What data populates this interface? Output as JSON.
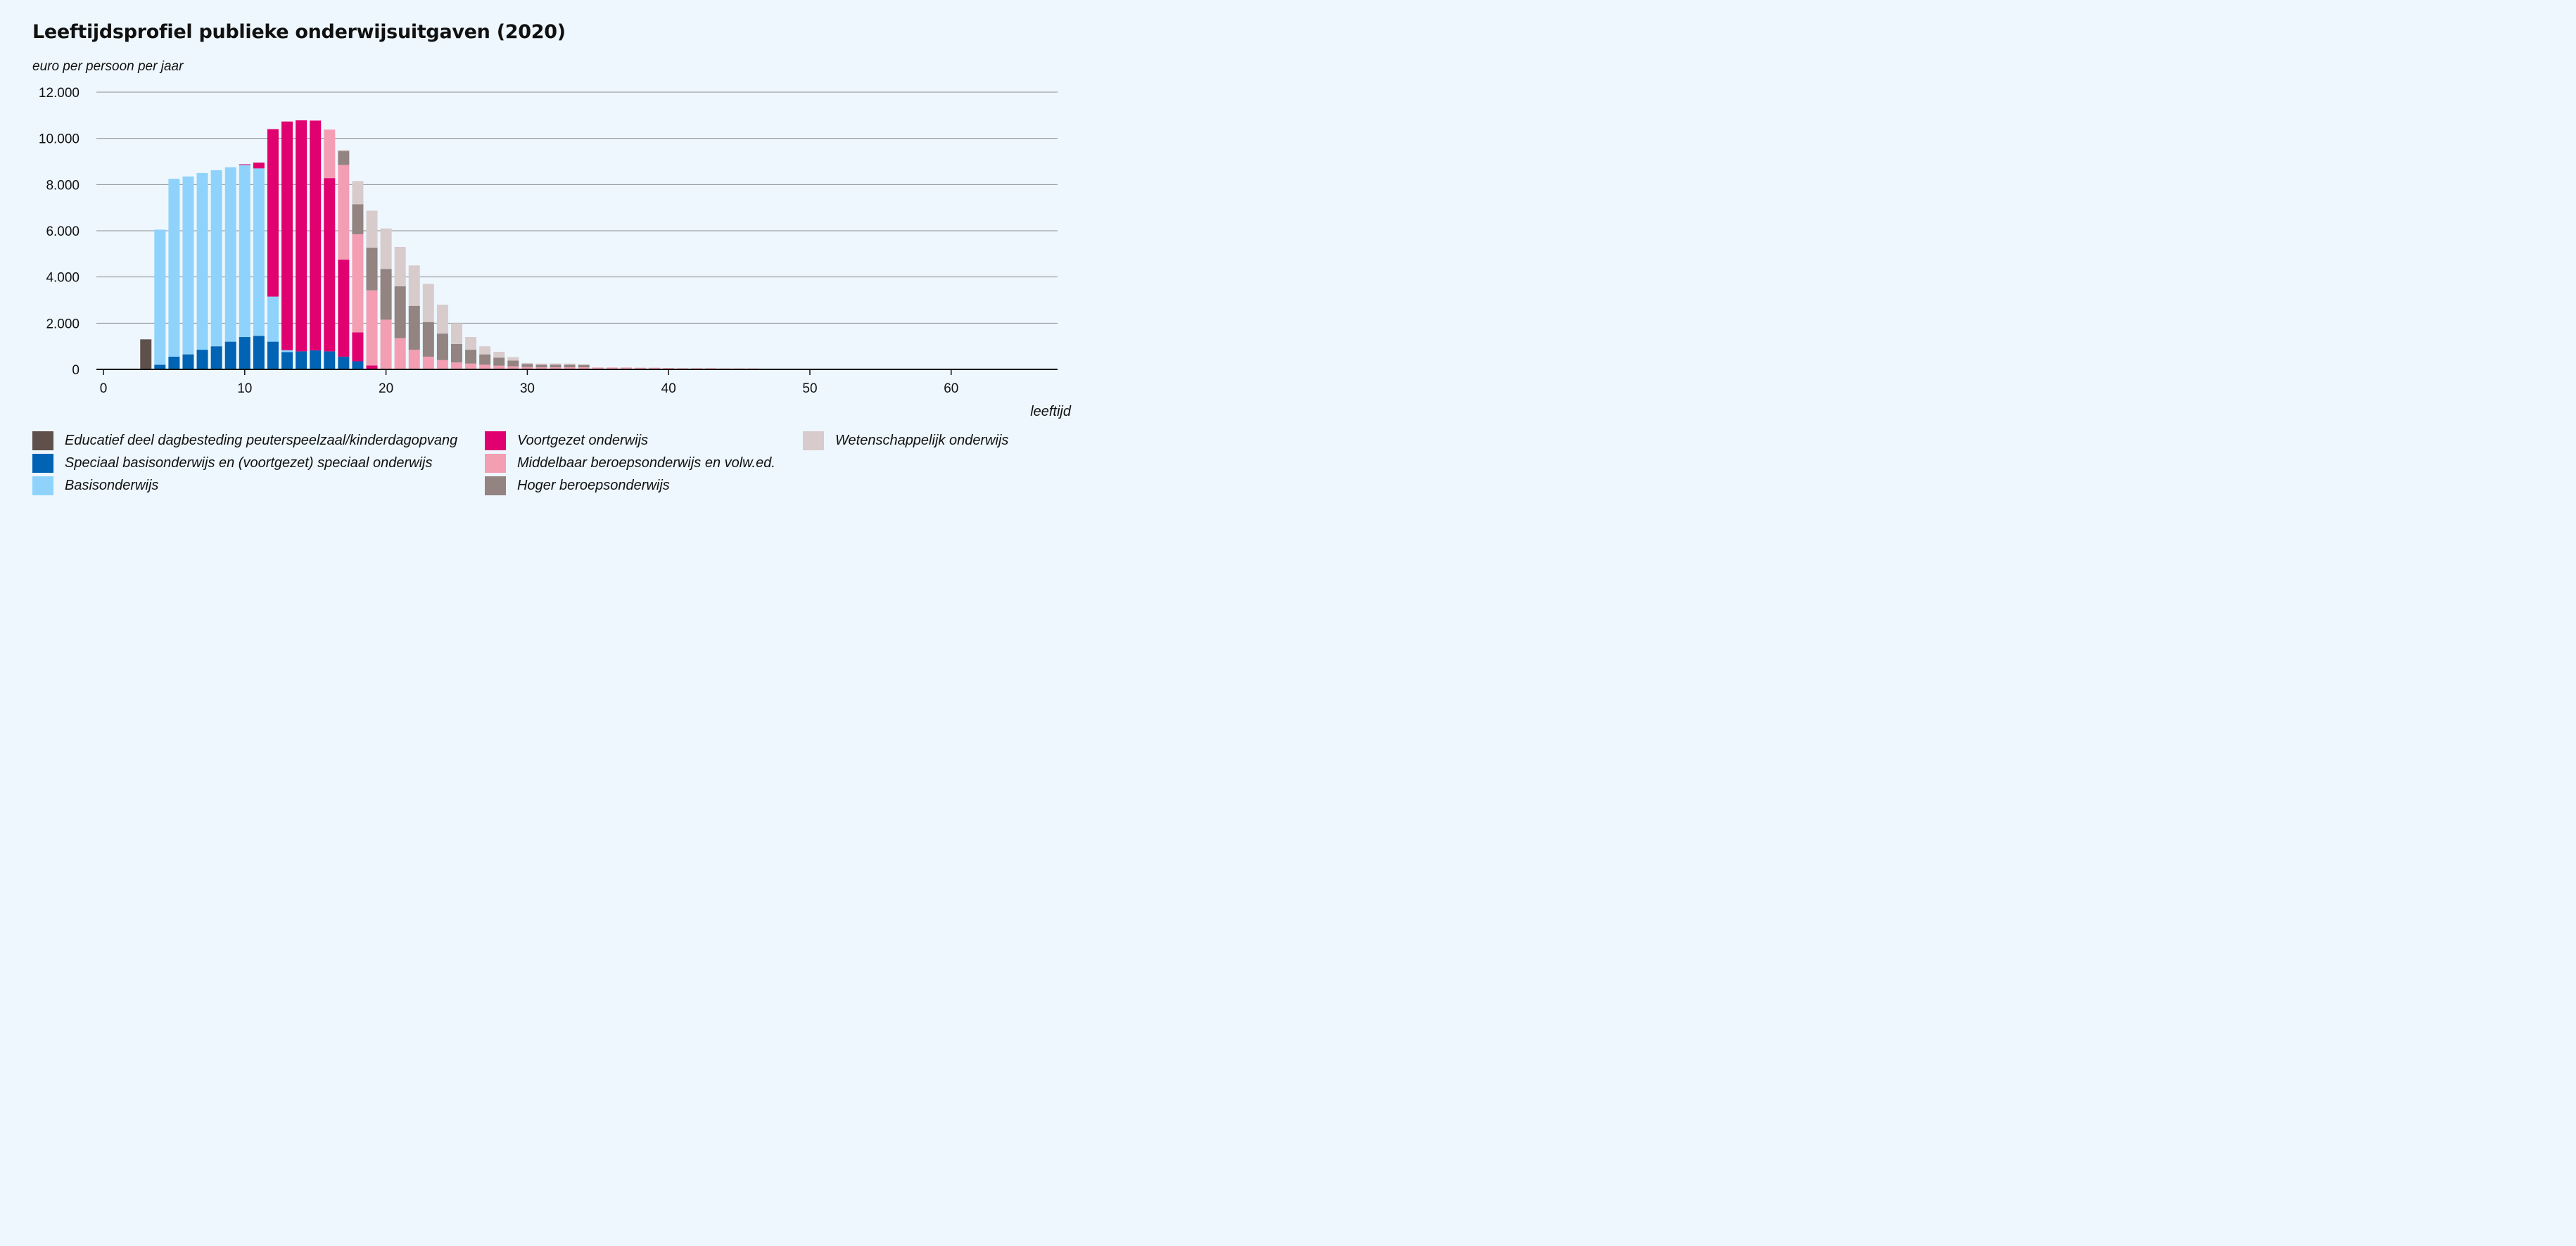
{
  "title": "Leeftijdsprofiel publieke onderwijsuitgaven (2020)",
  "unit_label": "euro per persoon per jaar",
  "xlabel": "leeftijd",
  "legend": [
    {
      "name": "Educatief deel dagbesteding peuterspeelzaal/kinderdagopvang",
      "color": "#5f504c"
    },
    {
      "name": "Speciaal basisonderwijs en (voortgezet) speciaal onderwijs",
      "color": "#0063b4"
    },
    {
      "name": "Basisonderwijs",
      "color": "#8fd3fc"
    },
    {
      "name": "Voortgezet onderwijs",
      "color": "#e0006f"
    },
    {
      "name": "Middelbaar beroepsonderwijs en volw.ed.",
      "color": "#f49eb3"
    },
    {
      "name": "Hoger beroepsonderwijs",
      "color": "#938381"
    },
    {
      "name": "Wetenschappelijk onderwijs",
      "color": "#d8cbcc"
    }
  ],
  "chart_data": {
    "type": "bar",
    "stacked": true,
    "x": [
      3,
      4,
      5,
      6,
      7,
      8,
      9,
      10,
      11,
      12,
      13,
      14,
      15,
      16,
      17,
      18,
      19,
      20,
      21,
      22,
      23,
      24,
      25,
      26,
      27,
      28,
      29,
      30,
      31,
      32,
      33,
      34,
      35,
      36,
      37,
      38,
      39,
      40,
      41,
      42,
      43,
      44,
      45,
      46,
      47,
      48,
      49
    ],
    "xlim": [
      0,
      67
    ],
    "ylim": [
      0,
      12000
    ],
    "yticks": [
      0,
      2000,
      4000,
      6000,
      8000,
      10000,
      12000
    ],
    "ytick_labels": [
      "0",
      "2.000",
      "4.000",
      "6.000",
      "8.000",
      "10.000",
      "12.000"
    ],
    "xticks": [
      0,
      10,
      20,
      30,
      40,
      50,
      60
    ],
    "xtick_labels": [
      "0",
      "10",
      "20",
      "30",
      "40",
      "50",
      "60"
    ],
    "grid": true,
    "legend_position": "bottom",
    "series": [
      {
        "name": "Educatief deel dagbesteding peuterspeelzaal/kinderdagopvang",
        "color": "#5f504c",
        "values": [
          1300,
          0,
          0,
          0,
          0,
          0,
          0,
          0,
          0,
          0,
          0,
          0,
          0,
          0,
          0,
          0,
          0,
          0,
          0,
          0,
          0,
          0,
          0,
          0,
          0,
          0,
          0,
          0,
          0,
          0,
          0,
          0,
          0,
          0,
          0,
          0,
          0,
          0,
          0,
          0,
          0,
          0,
          0,
          0,
          0,
          0,
          0
        ]
      },
      {
        "name": "Speciaal basisonderwijs en (voortgezet) speciaal onderwijs",
        "color": "#0063b4",
        "values": [
          0,
          200,
          550,
          650,
          850,
          1000,
          1200,
          1400,
          1450,
          1200,
          750,
          780,
          820,
          780,
          550,
          350,
          0,
          0,
          0,
          0,
          0,
          0,
          0,
          0,
          0,
          0,
          0,
          0,
          0,
          0,
          0,
          0,
          0,
          0,
          0,
          0,
          0,
          0,
          0,
          0,
          0,
          0,
          0,
          0,
          0,
          0,
          0
        ]
      },
      {
        "name": "Basisonderwijs",
        "color": "#8fd3fc",
        "values": [
          0,
          5850,
          7700,
          7700,
          7650,
          7620,
          7550,
          7450,
          7250,
          1950,
          80,
          0,
          0,
          0,
          0,
          0,
          0,
          0,
          0,
          0,
          0,
          0,
          0,
          0,
          0,
          0,
          0,
          0,
          0,
          0,
          0,
          0,
          0,
          0,
          0,
          0,
          0,
          0,
          0,
          0,
          0,
          0,
          0,
          0,
          0,
          0,
          0
        ]
      },
      {
        "name": "Voortgezet onderwijs",
        "color": "#e0006f",
        "values": [
          0,
          0,
          0,
          0,
          0,
          0,
          0,
          30,
          250,
          7250,
          9900,
          10000,
          9950,
          7500,
          4200,
          1250,
          170,
          0,
          0,
          0,
          0,
          0,
          0,
          0,
          0,
          0,
          0,
          0,
          0,
          0,
          0,
          0,
          0,
          0,
          0,
          0,
          0,
          0,
          0,
          0,
          0,
          0,
          0,
          0,
          0,
          0,
          0
        ]
      },
      {
        "name": "Middelbaar beroepsonderwijs en volw.ed.",
        "color": "#f49eb3",
        "values": [
          0,
          0,
          0,
          0,
          0,
          0,
          0,
          0,
          0,
          0,
          0,
          0,
          0,
          2100,
          4100,
          4250,
          3250,
          2150,
          1350,
          850,
          550,
          400,
          300,
          250,
          200,
          160,
          130,
          100,
          90,
          90,
          90,
          90,
          80,
          80,
          80,
          70,
          70,
          60,
          50,
          50,
          50,
          40,
          40,
          40,
          30,
          30,
          30
        ]
      },
      {
        "name": "Hoger beroepsonderwijs",
        "color": "#938381",
        "values": [
          0,
          0,
          0,
          0,
          0,
          0,
          0,
          0,
          0,
          0,
          0,
          0,
          0,
          0,
          600,
          1300,
          1850,
          2200,
          2250,
          1900,
          1500,
          1150,
          800,
          600,
          450,
          350,
          250,
          130,
          110,
          110,
          110,
          100,
          0,
          0,
          0,
          0,
          0,
          0,
          0,
          0,
          0,
          0,
          0,
          0,
          0,
          0,
          0
        ]
      },
      {
        "name": "Wetenschappelijk onderwijs",
        "color": "#d8cbcc",
        "values": [
          0,
          0,
          0,
          0,
          0,
          0,
          0,
          0,
          0,
          0,
          0,
          0,
          0,
          0,
          50,
          1000,
          1600,
          1750,
          1700,
          1750,
          1650,
          1250,
          900,
          550,
          350,
          250,
          150,
          50,
          50,
          60,
          50,
          40,
          0,
          0,
          0,
          0,
          0,
          0,
          0,
          0,
          0,
          0,
          0,
          0,
          0,
          0,
          0
        ]
      }
    ]
  }
}
